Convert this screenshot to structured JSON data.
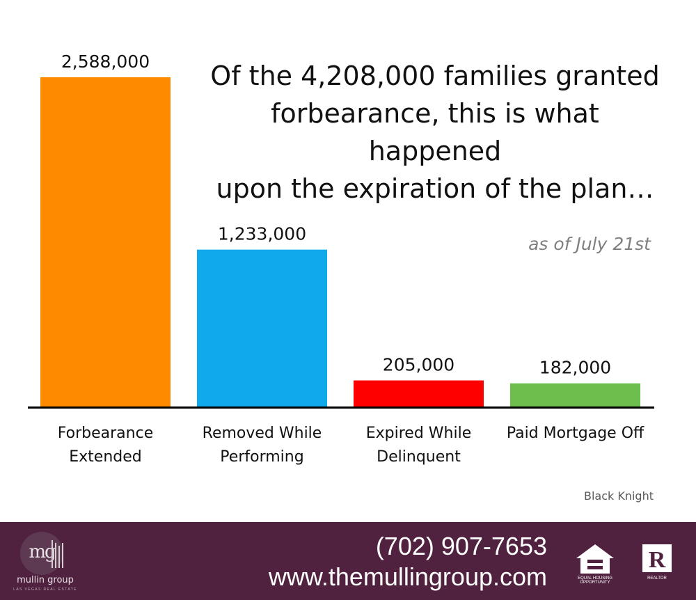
{
  "chart_data": {
    "type": "bar",
    "title": [
      "Of the 4,208,000 families granted",
      "forbearance, this is what happened",
      "upon the expiration of the plan…"
    ],
    "subtitle": "as of July 21st",
    "categories": [
      [
        "Forbearance",
        "Extended"
      ],
      [
        "Removed While",
        "Performing"
      ],
      [
        "Expired While",
        "Delinquent"
      ],
      [
        "Paid Mortgage Off"
      ]
    ],
    "values": [
      2588000,
      1233000,
      205000,
      182000
    ],
    "value_labels": [
      "2,588,000",
      "1,233,000",
      "205,000",
      "182,000"
    ],
    "colors": [
      "#fe8a00",
      "#10aaea",
      "#fe0000",
      "#6cbf4c"
    ],
    "ylim": [
      0,
      2588000
    ],
    "grid": false,
    "source": "Black Knight"
  },
  "footer": {
    "phone": "(702) 907-7653",
    "website": "www.themullingroup.com",
    "logo_monogram": "mg",
    "logo_name": "mullin group",
    "logo_tagline": "LAS VEGAS REAL ESTATE",
    "eho_text": "EQUAL HOUSING OPPORTUNITY",
    "realtor_text": "REALTOR",
    "background": "#51223f"
  }
}
